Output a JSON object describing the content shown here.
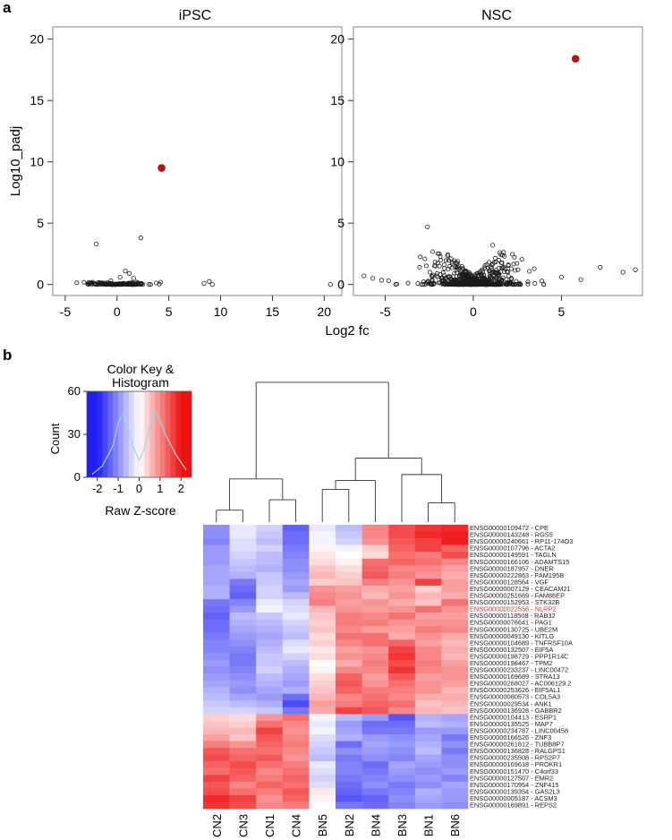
{
  "panel_a_label": "a",
  "panel_b_label": "b",
  "colors": {
    "highlight_point": "#b3170e",
    "point_stroke": "#1a1a1a",
    "frame": "#888888",
    "heat_low": "#1e1ef5",
    "heat_mid": "#ffffff",
    "heat_high": "#f01010",
    "highlight_gene_label": "#e03030",
    "histogram_line": "#9ad8e8"
  },
  "chart_data": [
    {
      "type": "scatter",
      "title": "iPSC",
      "xlabel": "Log2 fc",
      "ylabel": "Log10_padj",
      "xlim": [
        -6.2,
        21.7
      ],
      "ylim": [
        -0.9,
        21.0
      ],
      "xticks": [
        -5,
        0,
        5,
        10,
        15,
        20
      ],
      "yticks": [
        0,
        5,
        10,
        15,
        20
      ],
      "highlight": {
        "x": 4.3,
        "y": 9.5,
        "name": "NLRP2"
      },
      "cluster": {
        "n": 160,
        "x_range": [
          -5.2,
          6.0
        ],
        "x_sd": 1.6,
        "y_max": 0.2
      },
      "extra_points": [
        {
          "x": -2.0,
          "y": 3.3
        },
        {
          "x": 2.3,
          "y": 3.8
        },
        {
          "x": 0.8,
          "y": 1.1
        },
        {
          "x": 1.2,
          "y": 0.9
        },
        {
          "x": 0.3,
          "y": 0.6
        },
        {
          "x": 1.6,
          "y": 0.5
        },
        {
          "x": -0.6,
          "y": 0.3
        },
        {
          "x": 8.4,
          "y": 0.1
        },
        {
          "x": 8.9,
          "y": 0.25
        },
        {
          "x": 9.2,
          "y": 0.0
        },
        {
          "x": 20.6,
          "y": 0.0
        }
      ]
    },
    {
      "type": "scatter",
      "title": "NSC",
      "xlabel": "Log2 fc",
      "ylabel": "",
      "xlim": [
        -6.8,
        9.6
      ],
      "ylim": [
        -0.9,
        21.0
      ],
      "xticks": [
        -5,
        0,
        5
      ],
      "yticks": [
        0,
        5,
        10,
        15,
        20
      ],
      "highlight": {
        "x": 5.8,
        "y": 18.4,
        "name": "NLRP2"
      },
      "cluster": {
        "n": 600,
        "x_range": [
          -4.5,
          4.0
        ],
        "x_sd": 1.3,
        "y_max": 2.7
      },
      "extra_points": [
        {
          "x": -2.6,
          "y": 4.7
        },
        {
          "x": 1.1,
          "y": 3.2
        },
        {
          "x": 1.5,
          "y": 2.6
        },
        {
          "x": -6.2,
          "y": 0.7
        },
        {
          "x": -5.7,
          "y": 0.5
        },
        {
          "x": -5.2,
          "y": 0.35
        },
        {
          "x": -4.8,
          "y": 0.3
        },
        {
          "x": 7.2,
          "y": 1.4
        },
        {
          "x": 8.5,
          "y": 1.0
        },
        {
          "x": 9.2,
          "y": 1.2
        },
        {
          "x": 5.0,
          "y": 0.6
        },
        {
          "x": 6.1,
          "y": 0.4
        }
      ]
    },
    {
      "type": "heatmap",
      "columns": [
        "CN2",
        "CN3",
        "CN1",
        "CN4",
        "BN5",
        "BN2",
        "BN4",
        "BN3",
        "BN1",
        "BN6"
      ],
      "rows": [
        "ENSG00000109472 - CPE",
        "ENSG00000143248 - RGS5",
        "ENSG00000240661 - RP11-174O3",
        "ENSG00000107796 - ACTA2",
        "ENSG00000149591 - TAGLN",
        "ENSG00000166106 - ADAMTS15",
        "ENSG00000187957 - DNER",
        "ENSG00000222863 - FAM195B",
        "ENSG00000128564 - VGF",
        "ENSG00000007129 - CEACAM21",
        "ENSG00000251669 - FAM86EP",
        "ENSG00000152953 - STK32B",
        "ENSG00000022556 - NLRP2",
        "ENSG00000118508 - RAB32",
        "ENSG00000076641 - PAG1",
        "ENSG00000130725 - UBE2M",
        "ENSG00000049130 - KITLG",
        "ENSG00000104689 - TNFRSF10A",
        "ENSG00000132507 - EIF5A",
        "ENSG00000198729 - PPP1R14C",
        "ENSG00000198467 - TPM2",
        "ENSG00000233237 - LINC00472",
        "ENSG00000169689 - STRA13",
        "ENSG00000268027 - AC006129.2",
        "ENSG00000253626 - EIF5AL1",
        "ENSG00000080573 - COL5A3",
        "ENSG00000029534 - ANK1",
        "ENSG00000136928 - GABBR2",
        "ENSG00000104413 - ESRP1",
        "ENSG00000135525 - MAP7",
        "ENSG00000234787 - LINC00458",
        "ENSG00000166526 - ZNF3",
        "ENSG00000261812 - TUBB8P7",
        "ENSG00000136828 - RALGPS1",
        "ENSG00000235508 - RPS2P7",
        "ENSG00000169618 - PROKR1",
        "ENSG00000151470 - C4orf33",
        "ENSG00000127507 - EMR2",
        "ENSG00000170954 - ZNF415",
        "ENSG00000139354 - GAS2L3",
        "ENSG00000005187 - ACSM3",
        "ENSG00000169891 - REPS2"
      ],
      "highlight_row": "ENSG00000022556 - NLRP2",
      "values": [
        [
          -1.0,
          -0.2,
          -0.4,
          -1.4,
          -0.2,
          -0.6,
          1.0,
          1.5,
          1.7,
          1.8
        ],
        [
          -1.0,
          -0.2,
          -0.5,
          -1.3,
          -0.1,
          -0.5,
          1.0,
          1.5,
          1.8,
          1.9
        ],
        [
          -1.1,
          -0.3,
          -0.6,
          -1.3,
          -0.1,
          -0.4,
          0.9,
          1.4,
          1.6,
          1.9
        ],
        [
          -0.9,
          -0.3,
          -0.4,
          -1.2,
          0.1,
          -0.1,
          0.4,
          1.3,
          1.6,
          1.3
        ],
        [
          -0.9,
          -0.4,
          -0.6,
          -1.1,
          0.2,
          0.0,
          0.3,
          1.2,
          1.1,
          1.5
        ],
        [
          -0.9,
          -0.5,
          -0.6,
          -1.0,
          0.3,
          0.1,
          1.2,
          1.3,
          1.2,
          1.0
        ],
        [
          -0.8,
          -0.6,
          -0.7,
          -1.0,
          0.5,
          0.3,
          1.3,
          1.0,
          1.0,
          0.8
        ],
        [
          -0.8,
          -0.7,
          -0.5,
          -0.9,
          0.6,
          0.4,
          1.4,
          1.1,
          0.9,
          0.7
        ],
        [
          -0.8,
          -1.2,
          -0.5,
          -0.8,
          0.4,
          0.5,
          1.1,
          0.9,
          1.6,
          0.8
        ],
        [
          -0.7,
          -1.3,
          -0.4,
          -0.9,
          0.9,
          0.8,
          0.7,
          0.8,
          0.4,
          0.8
        ],
        [
          -0.7,
          -1.4,
          -0.4,
          -0.6,
          1.0,
          0.9,
          0.6,
          0.9,
          0.6,
          0.7
        ],
        [
          -1.2,
          -1.1,
          -0.2,
          -0.4,
          1.1,
          0.8,
          0.9,
          0.7,
          0.5,
          1.2
        ],
        [
          -1.3,
          -0.9,
          -0.1,
          -0.3,
          0.6,
          0.9,
          0.8,
          0.9,
          1.2,
          0.9
        ],
        [
          -1.4,
          -0.6,
          -0.5,
          -0.2,
          0.5,
          1.1,
          1.0,
          1.2,
          0.8,
          0.8
        ],
        [
          -1.3,
          -0.7,
          -0.6,
          -0.4,
          0.4,
          1.1,
          1.1,
          0.9,
          0.9,
          0.9
        ],
        [
          -1.3,
          -0.8,
          -0.7,
          -0.5,
          0.5,
          1.0,
          0.8,
          0.8,
          1.1,
          1.0
        ],
        [
          -1.2,
          -0.9,
          -0.8,
          -0.6,
          0.3,
          1.2,
          1.2,
          0.7,
          0.9,
          0.7
        ],
        [
          -1.1,
          -1.0,
          -0.7,
          -0.3,
          0.4,
          1.0,
          1.2,
          1.3,
          0.8,
          0.6
        ],
        [
          -1.1,
          -1.1,
          -0.6,
          -0.2,
          0.2,
          0.8,
          0.9,
          1.6,
          1.0,
          0.7
        ],
        [
          -1.0,
          -1.2,
          -0.5,
          -0.4,
          0.3,
          0.9,
          1.0,
          1.7,
          1.0,
          0.6
        ],
        [
          -0.9,
          -1.2,
          -0.5,
          -0.6,
          0.0,
          0.7,
          1.1,
          1.5,
          1.1,
          0.8
        ],
        [
          -1.0,
          -1.1,
          -0.4,
          -0.7,
          0.1,
          1.0,
          1.0,
          1.7,
          1.0,
          0.9
        ],
        [
          -0.9,
          -1.0,
          -0.6,
          -0.8,
          0.3,
          1.3,
          0.8,
          1.4,
          0.8,
          0.9
        ],
        [
          -0.8,
          -0.9,
          -0.7,
          -0.9,
          0.4,
          1.4,
          0.9,
          1.2,
          0.9,
          0.8
        ],
        [
          -0.7,
          -1.0,
          -0.8,
          -0.7,
          0.5,
          1.3,
          1.1,
          1.1,
          0.9,
          0.6
        ],
        [
          -0.6,
          -0.8,
          -0.9,
          -1.3,
          0.6,
          1.0,
          1.2,
          1.0,
          0.7,
          0.7
        ],
        [
          -0.5,
          -0.6,
          -0.7,
          -1.6,
          0.8,
          1.1,
          1.3,
          1.2,
          0.5,
          0.6
        ],
        [
          -0.4,
          -0.4,
          -0.5,
          -1.2,
          0.7,
          1.6,
          1.4,
          1.0,
          0.6,
          0.5
        ],
        [
          0.4,
          0.3,
          0.9,
          1.2,
          -0.1,
          -0.6,
          -0.9,
          -1.5,
          -0.7,
          -0.8
        ],
        [
          0.5,
          0.4,
          1.2,
          1.0,
          -0.2,
          -0.9,
          -1.3,
          -1.3,
          -0.6,
          -0.7
        ],
        [
          0.6,
          0.6,
          1.6,
          0.9,
          -0.1,
          -0.8,
          -1.2,
          -1.2,
          -0.9,
          -0.9
        ],
        [
          0.8,
          0.5,
          1.4,
          1.0,
          -0.3,
          -0.7,
          -0.9,
          -1.0,
          -0.8,
          -1.2
        ],
        [
          1.1,
          0.9,
          1.3,
          1.1,
          -0.4,
          -1.3,
          -0.8,
          -0.9,
          -0.7,
          -1.0
        ],
        [
          1.4,
          1.2,
          1.2,
          1.0,
          -0.5,
          -1.0,
          -0.9,
          -1.0,
          -0.6,
          -1.2
        ],
        [
          1.5,
          1.3,
          1.4,
          0.9,
          -0.6,
          -1.2,
          -1.0,
          -1.1,
          -0.8,
          -1.0
        ],
        [
          1.3,
          1.5,
          1.2,
          1.1,
          -0.2,
          -1.1,
          -1.3,
          -0.8,
          -0.9,
          -1.0
        ],
        [
          1.2,
          1.4,
          1.0,
          1.2,
          -0.3,
          -1.1,
          -1.2,
          -0.9,
          -1.0,
          -0.9
        ],
        [
          1.6,
          1.3,
          1.1,
          1.3,
          -0.4,
          -1.2,
          -1.1,
          -1.0,
          -0.9,
          -1.1
        ],
        [
          1.4,
          1.0,
          1.3,
          1.2,
          -0.3,
          -1.3,
          -1.0,
          -1.2,
          -1.0,
          -0.8
        ],
        [
          1.5,
          1.2,
          1.1,
          1.4,
          0.2,
          -1.4,
          -1.2,
          -1.1,
          -0.7,
          -0.9
        ],
        [
          1.8,
          1.6,
          0.9,
          1.3,
          0.1,
          -1.5,
          -1.4,
          -1.0,
          -0.8,
          -0.9
        ],
        [
          1.7,
          1.5,
          1.0,
          1.1,
          0.0,
          -1.2,
          -1.3,
          -1.1,
          -0.9,
          -1.0
        ]
      ],
      "dendrogram": {
        "merges": [
          {
            "a": 0,
            "b": 1,
            "h": 0.8
          },
          {
            "a": 2,
            "b": 3,
            "h": 1.5
          },
          {
            "a": 8,
            "b": 9,
            "h": 1.3
          },
          {
            "a": 7,
            "b": 12,
            "h": 3.2
          },
          {
            "a": 4,
            "b": 5,
            "h": 2.2
          },
          {
            "a": 14,
            "b": 6,
            "h": 2.8
          },
          {
            "a": 10,
            "b": 11,
            "h": 2.9
          },
          {
            "a": 15,
            "b": 13,
            "h": 4.3
          },
          {
            "a": 16,
            "b": 17,
            "h": 9.4
          }
        ],
        "max_height": 10.0
      },
      "color_key": {
        "title_line1": "Color Key &",
        "title_line2": "Histogram",
        "xlabel": "Raw Z-score",
        "ylabel": "Count",
        "xlim": [
          -2.5,
          2.5
        ],
        "xticks": [
          "-2",
          "-1",
          "0",
          "1",
          "2"
        ],
        "yticks": [
          "0",
          "30",
          "60"
        ],
        "ylim": [
          0,
          60
        ],
        "histogram": [
          {
            "x": -2.25,
            "count": 2
          },
          {
            "x": -1.75,
            "count": 8
          },
          {
            "x": -1.25,
            "count": 22
          },
          {
            "x": -1.0,
            "count": 38
          },
          {
            "x": -0.75,
            "count": 45
          },
          {
            "x": -0.5,
            "count": 33
          },
          {
            "x": -0.25,
            "count": 20
          },
          {
            "x": 0.0,
            "count": 12
          },
          {
            "x": 0.25,
            "count": 20
          },
          {
            "x": 0.5,
            "count": 35
          },
          {
            "x": 0.75,
            "count": 46
          },
          {
            "x": 1.0,
            "count": 40
          },
          {
            "x": 1.25,
            "count": 30
          },
          {
            "x": 1.75,
            "count": 16
          },
          {
            "x": 2.25,
            "count": 5
          }
        ]
      }
    }
  ]
}
